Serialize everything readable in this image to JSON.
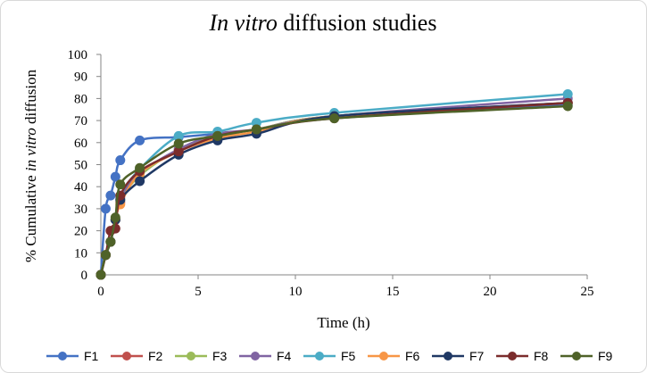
{
  "chart_data": {
    "type": "line",
    "title_italic": "In vitro",
    "title_rest": " diffusion studies",
    "ylabel_pre": "% Cumulative ",
    "ylabel_italic": "in vitro",
    "ylabel_post": " diffusion",
    "xlabel": "Time (h)",
    "xlim": [
      0,
      25
    ],
    "ylim": [
      0,
      100
    ],
    "xticks": [
      0,
      5,
      10,
      15,
      20,
      25
    ],
    "yticks": [
      0,
      10,
      20,
      30,
      40,
      50,
      60,
      70,
      80,
      90,
      100
    ],
    "grid": false,
    "legend_position": "bottom",
    "x": [
      0,
      0.25,
      0.5,
      0.75,
      1,
      2,
      4,
      6,
      8,
      12,
      24
    ],
    "series": [
      {
        "name": "F1",
        "color": "#4472C4",
        "values": [
          0,
          30,
          36,
          44.5,
          52,
          61,
          62.5,
          64,
          66,
          72,
          77
        ]
      },
      {
        "name": "F2",
        "color": "#C0504D",
        "values": [
          0,
          9,
          15,
          25,
          33,
          46,
          56,
          63,
          66,
          72,
          78
        ]
      },
      {
        "name": "F3",
        "color": "#9BBB59",
        "values": [
          0,
          9,
          15,
          25,
          34,
          45,
          57,
          63,
          66,
          72,
          78
        ]
      },
      {
        "name": "F4",
        "color": "#8064A2",
        "values": [
          0,
          9,
          15,
          25,
          35,
          46,
          57,
          64,
          66,
          72,
          80
        ]
      },
      {
        "name": "F5",
        "color": "#4BACC6",
        "values": [
          0,
          9,
          15,
          25,
          36,
          48,
          63,
          65,
          69,
          73.5,
          82
        ]
      },
      {
        "name": "F6",
        "color": "#F79646",
        "values": [
          0,
          9,
          15,
          25,
          32,
          46,
          56,
          62,
          65,
          72,
          78
        ]
      },
      {
        "name": "F7",
        "color": "#1F3864",
        "values": [
          0,
          9,
          15,
          25,
          34,
          42.5,
          54.5,
          61,
          64,
          72,
          78
        ]
      },
      {
        "name": "F8",
        "color": "#7B2C2C",
        "values": [
          0,
          9,
          20,
          21,
          36,
          47,
          56,
          63,
          66,
          71,
          78
        ]
      },
      {
        "name": "F9",
        "color": "#4F6228",
        "values": [
          0,
          9,
          15,
          26,
          41,
          48.5,
          59.5,
          63,
          66,
          71,
          76.5
        ]
      }
    ]
  }
}
